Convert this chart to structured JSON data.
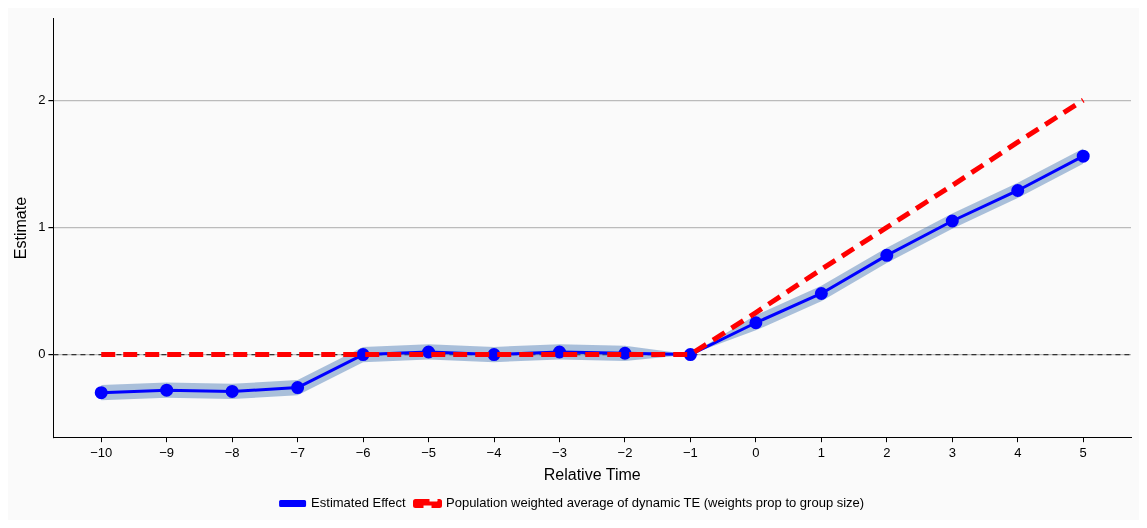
{
  "chart_data": {
    "type": "line",
    "xlabel": "Relative Time",
    "ylabel": "Estimate",
    "x": [
      -10,
      -9,
      -8,
      -7,
      -6,
      -5,
      -4,
      -3,
      -2,
      -1,
      0,
      1,
      2,
      3,
      4,
      5
    ],
    "xlim": [
      -10.73,
      5.73
    ],
    "xticks": [
      -10,
      -9,
      -8,
      -7,
      -6,
      -5,
      -4,
      -3,
      -2,
      -1,
      0,
      1,
      2,
      3,
      4,
      5
    ],
    "ylim": [
      -0.65,
      2.64
    ],
    "yticks": [
      0,
      1,
      2
    ],
    "grid": "y",
    "legend": "bottom",
    "ref_lines": [
      {
        "axis": "y",
        "value": 0,
        "color": "#333333",
        "line_style": "dashed"
      }
    ],
    "series": [
      {
        "name": "Estimated Effect",
        "color": "#0000ff",
        "marker": "circle",
        "line_style": "solid",
        "values": [
          -0.3,
          -0.28,
          -0.29,
          -0.26,
          0,
          0.02,
          0,
          0.02,
          0.01,
          0,
          0.25,
          0.48,
          0.78,
          1.05,
          1.29,
          1.56
        ],
        "lower": [
          -0.36,
          -0.34,
          -0.35,
          -0.32,
          -0.06,
          -0.04,
          -0.06,
          -0.04,
          -0.05,
          0,
          0.19,
          0.42,
          0.72,
          0.99,
          1.23,
          1.5
        ],
        "upper": [
          -0.24,
          -0.22,
          -0.23,
          -0.2,
          0.06,
          0.08,
          0.06,
          0.08,
          0.07,
          0,
          0.31,
          0.54,
          0.84,
          1.11,
          1.35,
          1.62
        ]
      },
      {
        "name": "Population weighted average of dynamic TE (weights prop to group size)",
        "color": "#ff0000",
        "marker": "none",
        "line_style": "dashed",
        "values": [
          0,
          0,
          0,
          0,
          0,
          0,
          0,
          0,
          0,
          0,
          0.33,
          0.67,
          1,
          1.33,
          1.67,
          2
        ]
      }
    ]
  }
}
